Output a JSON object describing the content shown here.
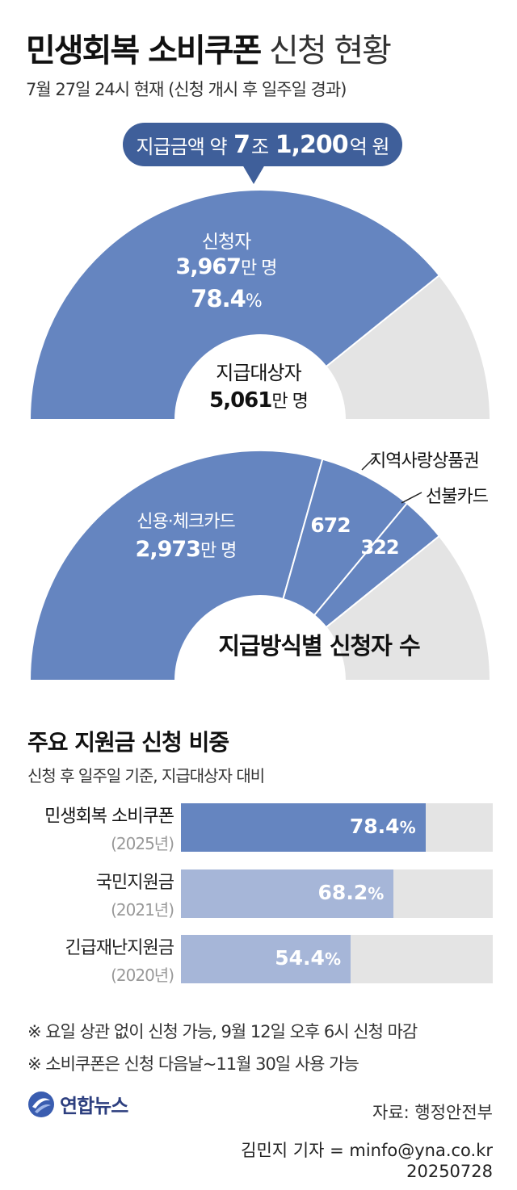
{
  "header": {
    "title_bold": "민생회복 소비쿠폰",
    "title_light": "신청 현황",
    "subtitle": "7월 27일 24시 현재 (신청 개시 후 일주일 경과)"
  },
  "callout": {
    "prefix": "지급금액 약",
    "num1": "7",
    "mid": "조",
    "num2": "1,200",
    "suffix": "억 원"
  },
  "colors": {
    "primary": "#6585c0",
    "light": "#a6b6d8",
    "track": "#e4e4e4",
    "callout": "#3f5f9a"
  },
  "chart_data": [
    {
      "type": "pie",
      "subtype": "half-donut",
      "values": [
        78.4,
        21.6
      ],
      "applicants": {
        "label": "신청자",
        "value": "3,967",
        "unit": "만 명",
        "pct": "78.4",
        "pct_unit": "%"
      },
      "eligible": {
        "label": "지급대상자",
        "value": "5,061",
        "unit": "만 명"
      }
    },
    {
      "type": "pie",
      "subtype": "half-donut",
      "title": "지급방식별 신청자 수",
      "total": 5061,
      "series": [
        {
          "name": "신용·체크카드",
          "value": 2973,
          "display": "2,973",
          "unit": "만 명"
        },
        {
          "name": "지역사랑상품권",
          "value": 672,
          "display": "672"
        },
        {
          "name": "선불카드",
          "value": 322,
          "display": "322"
        }
      ]
    },
    {
      "type": "bar",
      "orientation": "horizontal",
      "title": "주요 지원금 신청 비중",
      "subtitle": "신청 후 일주일 기준, 지급대상자 대비",
      "xlim": [
        0,
        100
      ],
      "categories": [
        {
          "name": "민생회복 소비쿠폰",
          "year": "(2025년)",
          "value": 78.4,
          "label": "78.4",
          "unit": "%",
          "highlight": true
        },
        {
          "name": "국민지원금",
          "year": "(2021년)",
          "value": 68.2,
          "label": "68.2",
          "unit": "%",
          "highlight": false
        },
        {
          "name": "긴급재난지원금",
          "year": "(2020년)",
          "value": 54.4,
          "label": "54.4",
          "unit": "%",
          "highlight": false
        }
      ]
    }
  ],
  "notes": [
    "※ 요일 상관 없이 신청 가능, 9월 12일 오후 6시 신청 마감",
    "※ 소비쿠폰은 신청 다음날~11월 30일 사용 가능"
  ],
  "footer": {
    "logo_text": "연합뉴스",
    "source": "자료: 행정안전부",
    "reporter": "김민지 기자 = minfo@yna.co.kr",
    "date": "20250728"
  }
}
